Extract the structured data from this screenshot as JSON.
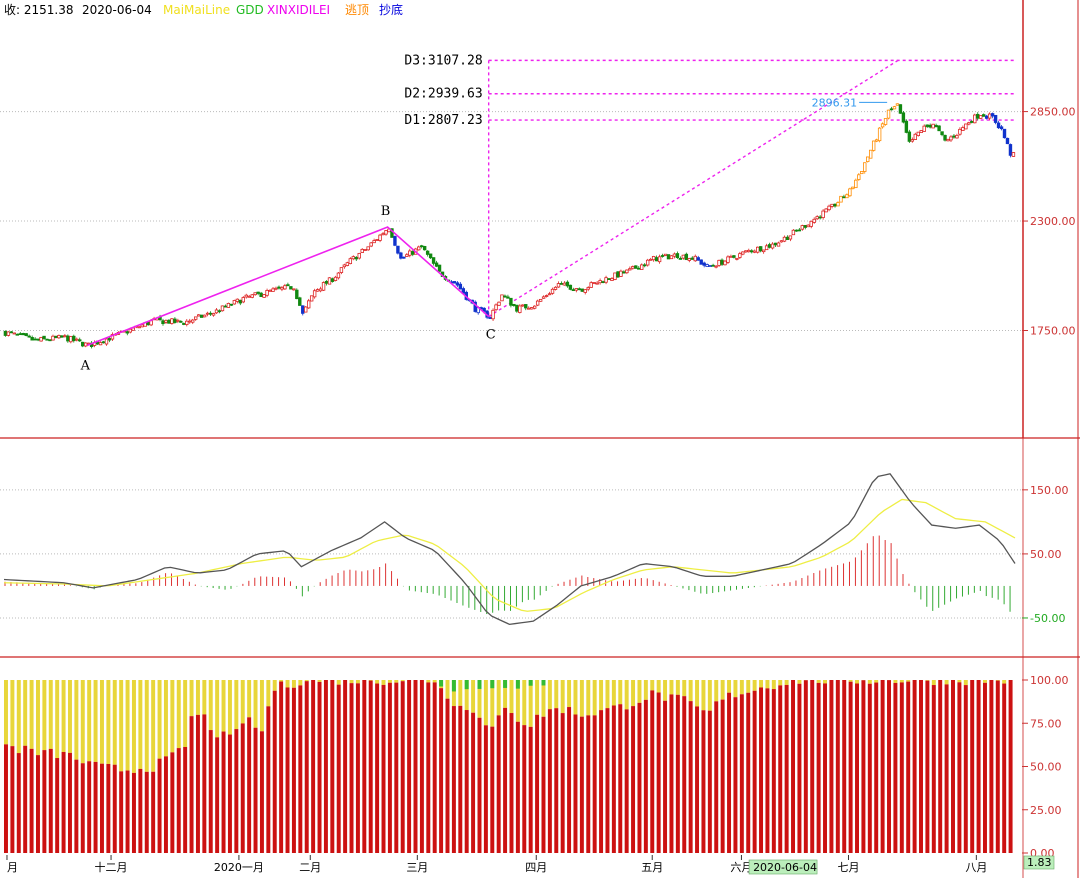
{
  "header": {
    "close_label": "收: 2151.38",
    "date": "2020-06-04",
    "indicators": [
      {
        "name": "MaiMaiLine",
        "color": "#f0e020"
      },
      {
        "name": "GDD",
        "color": "#22bb22"
      },
      {
        "name": "XINXIDILEI",
        "color": "#ee00ee"
      },
      {
        "name": "逃顶",
        "color": "#ff8800"
      },
      {
        "name": "抄底",
        "color": "#0000dd"
      }
    ]
  },
  "chart_data": [
    {
      "type": "candlestick",
      "pane": "price",
      "y_ticks": [
        "2850.00",
        "2300.00",
        "1750.00"
      ],
      "ylim": [
        1250,
        3270
      ],
      "levels": [
        {
          "label": "D3:3107.28",
          "value": 3107.28
        },
        {
          "label": "D2:2939.63",
          "value": 2939.63
        },
        {
          "label": "D1:2807.23",
          "value": 2807.23
        }
      ],
      "peak_label": "2896.31",
      "wave_points": [
        {
          "label": "A",
          "bar": 28,
          "value": 1675
        },
        {
          "label": "B",
          "bar": 129,
          "value": 2270
        },
        {
          "label": "C",
          "bar": 163,
          "value": 1820
        }
      ],
      "close_trend": [
        [
          0,
          1740
        ],
        [
          10,
          1700
        ],
        [
          20,
          1715
        ],
        [
          28,
          1675
        ],
        [
          40,
          1740
        ],
        [
          50,
          1800
        ],
        [
          60,
          1790
        ],
        [
          70,
          1840
        ],
        [
          80,
          1910
        ],
        [
          90,
          1950
        ],
        [
          97,
          1970
        ],
        [
          100,
          1830
        ],
        [
          104,
          1950
        ],
        [
          110,
          2010
        ],
        [
          116,
          2100
        ],
        [
          122,
          2170
        ],
        [
          129,
          2270
        ],
        [
          133,
          2110
        ],
        [
          140,
          2170
        ],
        [
          146,
          2040
        ],
        [
          152,
          1980
        ],
        [
          158,
          1860
        ],
        [
          163,
          1820
        ],
        [
          167,
          1930
        ],
        [
          172,
          1860
        ],
        [
          178,
          1880
        ],
        [
          186,
          1980
        ],
        [
          194,
          1960
        ],
        [
          202,
          2010
        ],
        [
          210,
          2050
        ],
        [
          218,
          2110
        ],
        [
          226,
          2130
        ],
        [
          232,
          2110
        ],
        [
          236,
          2070
        ],
        [
          242,
          2100
        ],
        [
          250,
          2150
        ],
        [
          258,
          2180
        ],
        [
          264,
          2230
        ],
        [
          270,
          2290
        ],
        [
          278,
          2370
        ],
        [
          284,
          2450
        ],
        [
          288,
          2560
        ],
        [
          293,
          2720
        ],
        [
          297,
          2850
        ],
        [
          300,
          2880
        ],
        [
          304,
          2690
        ],
        [
          308,
          2760
        ],
        [
          312,
          2790
        ],
        [
          316,
          2700
        ],
        [
          320,
          2740
        ],
        [
          324,
          2800
        ],
        [
          328,
          2840
        ],
        [
          332,
          2820
        ],
        [
          335,
          2760
        ],
        [
          338,
          2640
        ],
        [
          340,
          2620
        ]
      ],
      "x_ticks": [
        {
          "label": "月",
          "bar": 1
        },
        {
          "label": "十二月",
          "bar": 36
        },
        {
          "label": "2020一月",
          "bar": 79
        },
        {
          "label": "二月",
          "bar": 103
        },
        {
          "label": "三月",
          "bar": 139
        },
        {
          "label": "四月",
          "bar": 179
        },
        {
          "label": "五月",
          "bar": 218
        },
        {
          "label": "六月",
          "bar": 248
        },
        {
          "label": "七月",
          "bar": 284
        },
        {
          "label": "八月",
          "bar": 327
        }
      ],
      "cursor_date": "2020-06-04",
      "cursor_bar": 262,
      "bar_count": 340
    },
    {
      "type": "line",
      "pane": "macd",
      "y_ticks": [
        {
          "label": "150.00",
          "value": 150,
          "color": "#cc3333"
        },
        {
          "label": "50.00",
          "value": 50,
          "color": "#cc3333"
        },
        {
          "label": "-50.00",
          "value": -50,
          "color": "#22aa22"
        }
      ],
      "ylim": [
        -100,
        220
      ],
      "dif": [
        [
          0,
          10
        ],
        [
          20,
          5
        ],
        [
          30,
          -3
        ],
        [
          45,
          10
        ],
        [
          55,
          30
        ],
        [
          65,
          20
        ],
        [
          75,
          25
        ],
        [
          85,
          50
        ],
        [
          95,
          55
        ],
        [
          100,
          30
        ],
        [
          110,
          55
        ],
        [
          120,
          75
        ],
        [
          128,
          100
        ],
        [
          135,
          75
        ],
        [
          145,
          55
        ],
        [
          155,
          5
        ],
        [
          163,
          -45
        ],
        [
          170,
          -60
        ],
        [
          178,
          -55
        ],
        [
          186,
          -30
        ],
        [
          194,
          0
        ],
        [
          205,
          15
        ],
        [
          215,
          35
        ],
        [
          225,
          30
        ],
        [
          235,
          15
        ],
        [
          245,
          15
        ],
        [
          255,
          25
        ],
        [
          265,
          35
        ],
        [
          275,
          65
        ],
        [
          285,
          100
        ],
        [
          293,
          170
        ],
        [
          298,
          175
        ],
        [
          305,
          130
        ],
        [
          312,
          95
        ],
        [
          320,
          90
        ],
        [
          328,
          95
        ],
        [
          335,
          70
        ],
        [
          340,
          35
        ]
      ],
      "dea": [
        [
          0,
          5
        ],
        [
          20,
          3
        ],
        [
          35,
          0
        ],
        [
          50,
          10
        ],
        [
          65,
          20
        ],
        [
          80,
          35
        ],
        [
          95,
          45
        ],
        [
          105,
          40
        ],
        [
          115,
          45
        ],
        [
          125,
          70
        ],
        [
          135,
          80
        ],
        [
          145,
          65
        ],
        [
          155,
          30
        ],
        [
          165,
          -20
        ],
        [
          175,
          -40
        ],
        [
          185,
          -35
        ],
        [
          195,
          -10
        ],
        [
          205,
          10
        ],
        [
          215,
          25
        ],
        [
          225,
          30
        ],
        [
          235,
          25
        ],
        [
          245,
          20
        ],
        [
          255,
          25
        ],
        [
          265,
          30
        ],
        [
          275,
          45
        ],
        [
          285,
          70
        ],
        [
          295,
          115
        ],
        [
          302,
          135
        ],
        [
          310,
          130
        ],
        [
          320,
          105
        ],
        [
          330,
          100
        ],
        [
          340,
          75
        ]
      ]
    },
    {
      "type": "bar",
      "pane": "ratio",
      "y_ticks": [
        "100.00",
        "75.00",
        "50.00",
        "25.00",
        "0.00"
      ],
      "ylim": [
        0,
        100
      ],
      "anchors": [
        [
          0,
          62
        ],
        [
          10,
          58
        ],
        [
          20,
          57
        ],
        [
          30,
          50
        ],
        [
          40,
          48
        ],
        [
          50,
          50
        ],
        [
          60,
          60
        ],
        [
          62,
          78
        ],
        [
          66,
          80
        ],
        [
          70,
          70
        ],
        [
          76,
          65
        ],
        [
          80,
          78
        ],
        [
          86,
          70
        ],
        [
          90,
          95
        ],
        [
          100,
          100
        ],
        [
          145,
          100
        ],
        [
          150,
          88
        ],
        [
          155,
          82
        ],
        [
          160,
          78
        ],
        [
          163,
          74
        ],
        [
          167,
          82
        ],
        [
          172,
          78
        ],
        [
          176,
          74
        ],
        [
          180,
          80
        ],
        [
          186,
          84
        ],
        [
          194,
          80
        ],
        [
          200,
          82
        ],
        [
          206,
          84
        ],
        [
          212,
          88
        ],
        [
          218,
          92
        ],
        [
          222,
          90
        ],
        [
          228,
          88
        ],
        [
          232,
          84
        ],
        [
          236,
          80
        ],
        [
          240,
          88
        ],
        [
          245,
          92
        ],
        [
          250,
          94
        ],
        [
          255,
          96
        ],
        [
          260,
          98
        ],
        [
          265,
          100
        ],
        [
          340,
          100
        ]
      ],
      "green_range": [
        145,
        185
      ],
      "bar_count": 158,
      "current_value": "1.83"
    }
  ]
}
